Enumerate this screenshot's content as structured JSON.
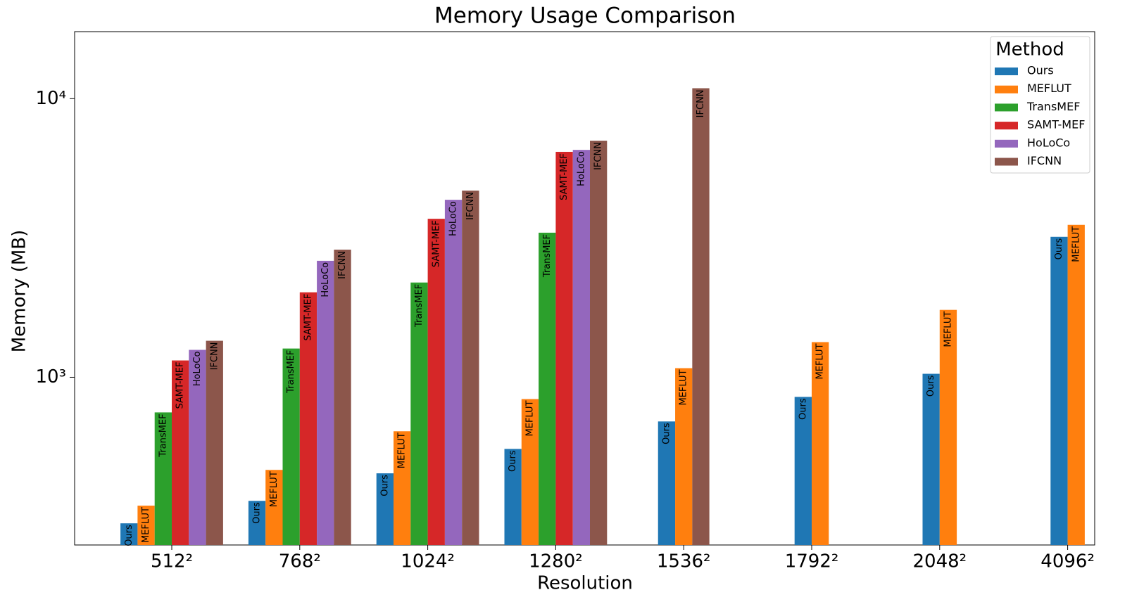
{
  "chart_data": {
    "type": "bar",
    "title": "Memory Usage Comparison",
    "xlabel": "Resolution",
    "ylabel": "Memory (MB)",
    "categories": [
      "512²",
      "768²",
      "1024²",
      "1280²",
      "1536²",
      "1792²",
      "2048²",
      "4096²"
    ],
    "series": [
      {
        "name": "Ours",
        "color": "#1f77b4",
        "values": [
          299,
          360,
          452,
          553,
          694,
          850,
          1029,
          3192
        ]
      },
      {
        "name": "MEFLUT",
        "color": "#ff7f0e",
        "values": [
          346,
          465,
          640,
          835,
          1078,
          1337,
          1745,
          3524
        ]
      },
      {
        "name": "TransMEF",
        "color": "#2ca02c",
        "values": [
          748,
          1268,
          2188,
          3303,
          null,
          null,
          null,
          null
        ]
      },
      {
        "name": "SAMT-MEF",
        "color": "#d62728",
        "values": [
          1149,
          2018,
          3705,
          6442,
          null,
          null,
          null,
          null
        ]
      },
      {
        "name": "HoLoCo",
        "color": "#9467bd",
        "values": [
          1254,
          2618,
          4335,
          6548,
          null,
          null,
          null,
          null
        ]
      },
      {
        "name": "IFCNN",
        "color": "#8c564b",
        "values": [
          1352,
          2871,
          4677,
          7065,
          10900,
          null,
          null,
          null
        ]
      }
    ],
    "ylim": [
      250,
      17400
    ],
    "log_y": true,
    "yticks": [
      {
        "value": 1000,
        "label": "10³"
      },
      {
        "value": 10000,
        "label": "10⁴"
      }
    ],
    "legend_title": "Method",
    "legend": "upper right"
  }
}
